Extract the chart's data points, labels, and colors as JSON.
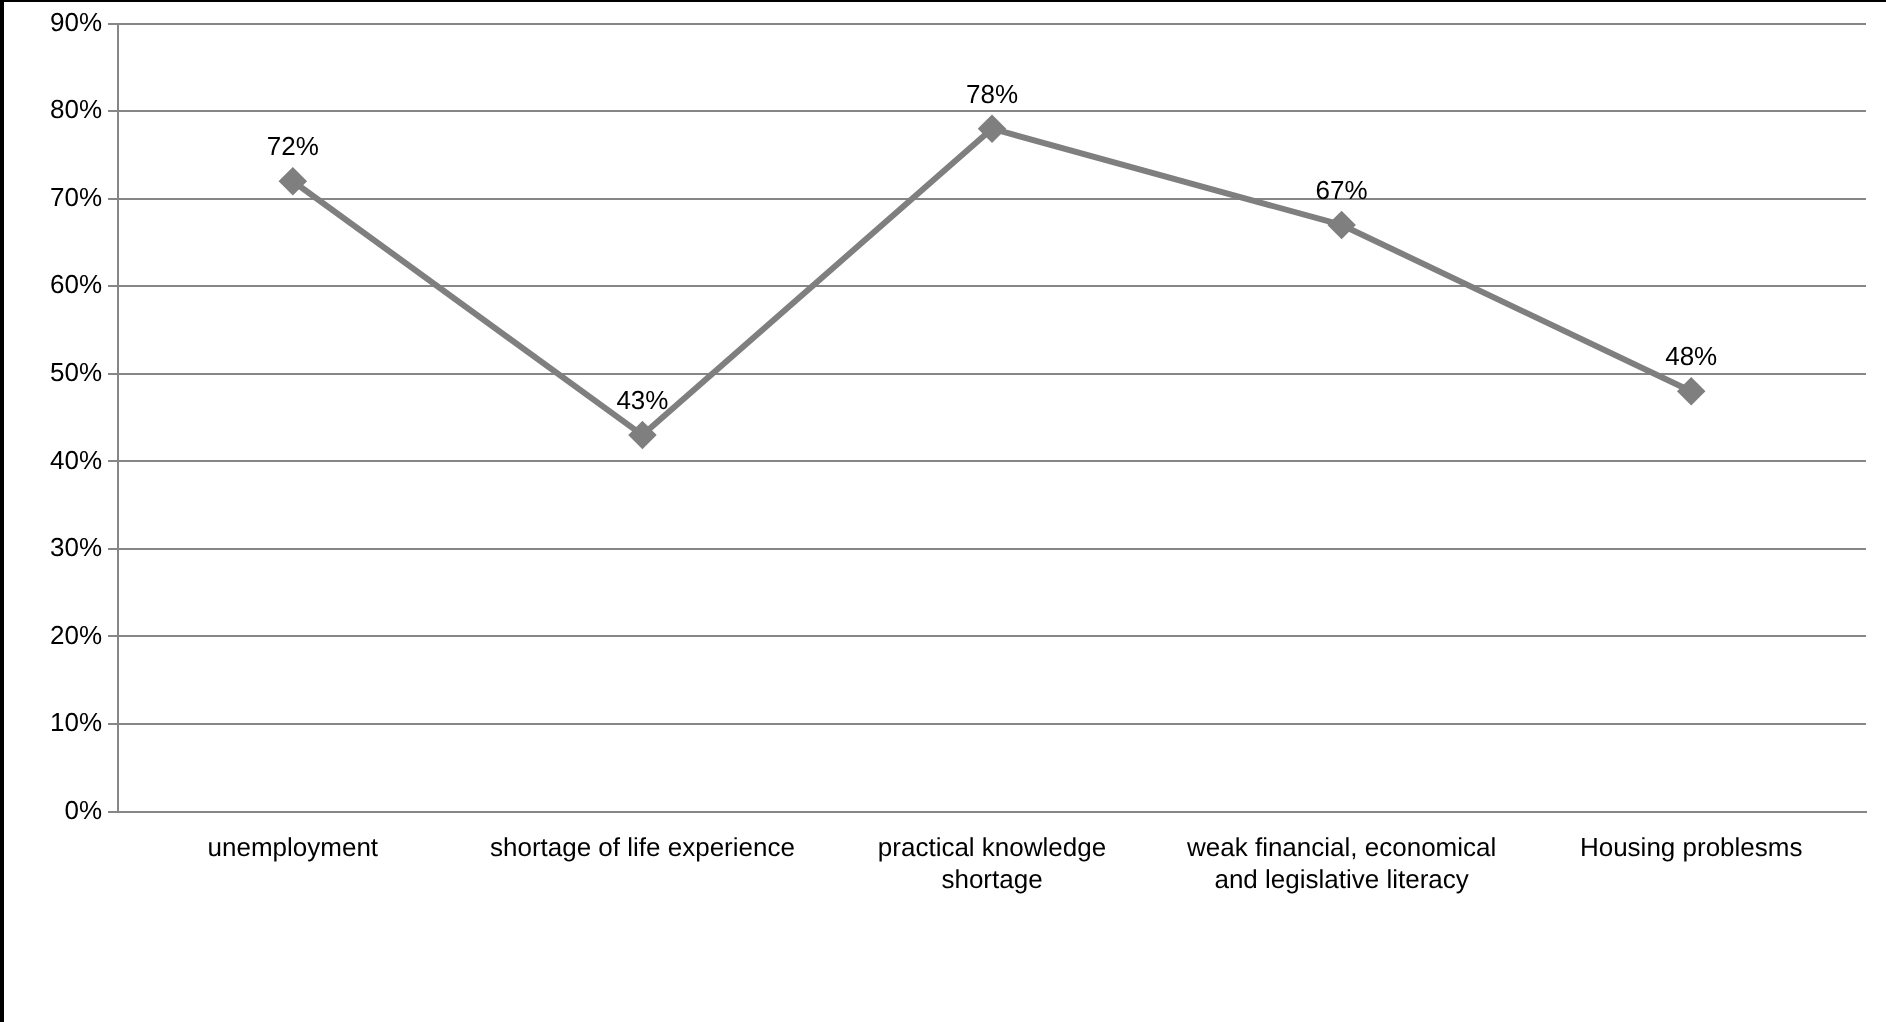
{
  "chart_data": {
    "type": "line",
    "categories": [
      "unemployment",
      "shortage of life experience",
      "practical knowledge shortage",
      "weak financial, economical and legislative literacy",
      "Housing problesms"
    ],
    "series": [
      {
        "color": "#7f7f7f",
        "values": [
          72,
          43,
          78,
          67,
          48
        ],
        "value_labels": [
          "72%",
          "43%",
          "78%",
          "67%",
          "48%"
        ]
      }
    ],
    "ylim": [
      0,
      90
    ],
    "yticks": [
      {
        "value": 0,
        "label": "0%"
      },
      {
        "value": 10,
        "label": "10%"
      },
      {
        "value": 20,
        "label": "20%"
      },
      {
        "value": 30,
        "label": "30%"
      },
      {
        "value": 40,
        "label": "40%"
      },
      {
        "value": 50,
        "label": "50%"
      },
      {
        "value": 60,
        "label": "60%"
      },
      {
        "value": 70,
        "label": "70%"
      },
      {
        "value": 80,
        "label": "80%"
      },
      {
        "value": 90,
        "label": "90%"
      }
    ],
    "grid": "y",
    "marker": "diamond",
    "line_style": "solid",
    "legend": false
  }
}
